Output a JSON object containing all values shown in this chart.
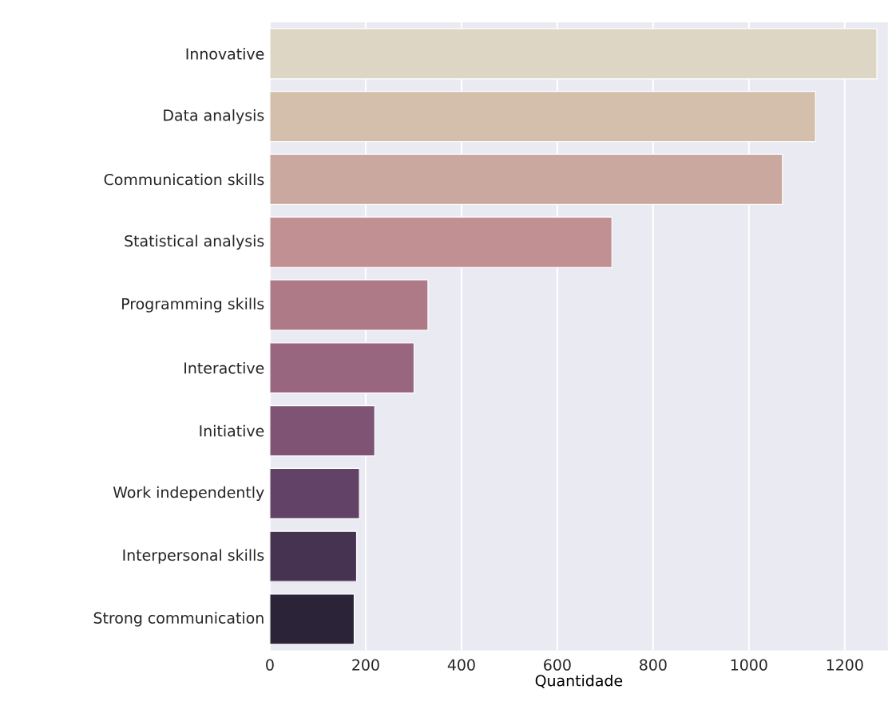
{
  "chart_data": {
    "type": "bar",
    "orientation": "horizontal",
    "xlabel": "Quantidade",
    "categories": [
      "Innovative",
      "Data analysis",
      "Communication skills",
      "Statistical analysis",
      "Programming skills",
      "Interactive",
      "Initiative",
      "Work independently",
      "Interpersonal skills",
      "Strong communication"
    ],
    "values": [
      1267,
      1139,
      1070,
      714,
      330,
      301,
      219,
      187,
      181,
      176
    ],
    "colors": [
      "#ded6c4",
      "#d4bfad",
      "#caa89f",
      "#c09093",
      "#ae7a87",
      "#98677f",
      "#7e5373",
      "#624266",
      "#463352",
      "#2b2439"
    ],
    "xlim": [
      0,
      1290
    ],
    "xticks": [
      0,
      200,
      400,
      600,
      800,
      1000,
      1200
    ],
    "grid": "x"
  }
}
